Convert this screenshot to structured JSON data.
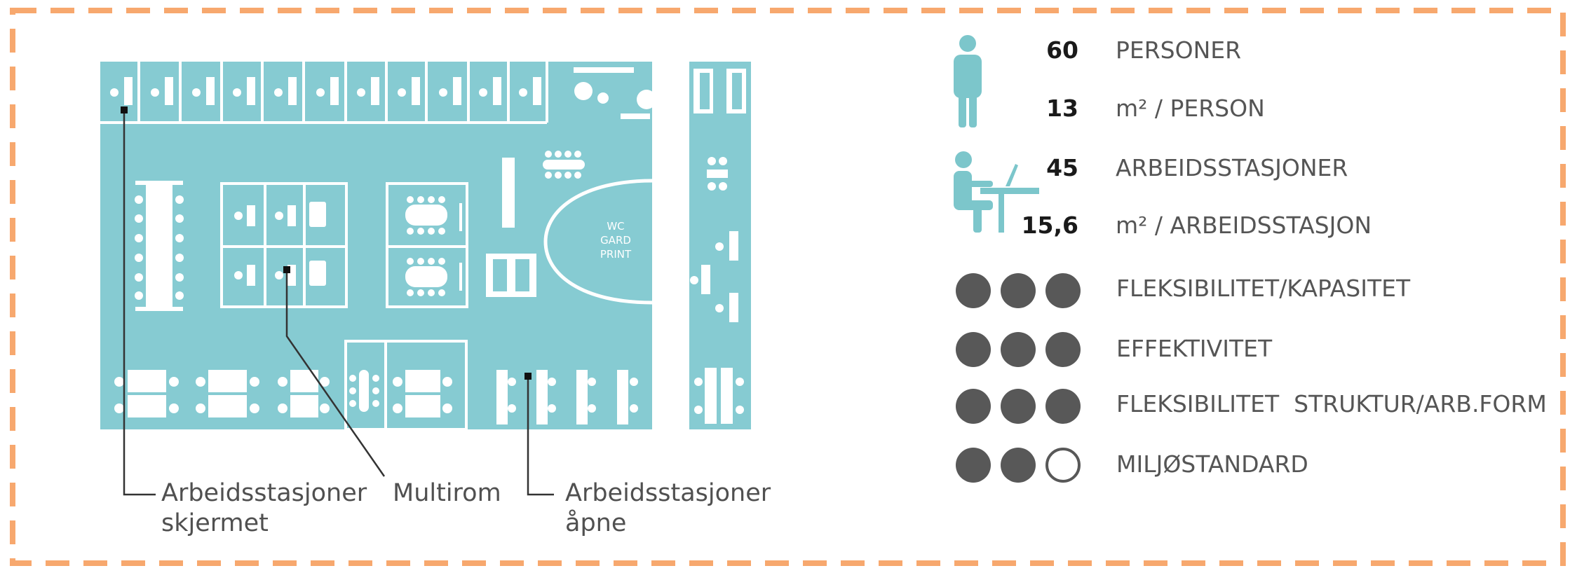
{
  "colors": {
    "border": "#F7A86E",
    "floor": "#86CBD2",
    "furniture": "#FFFFFF",
    "icon": "#7CC6CB",
    "dot": "#585858",
    "leader": "#333333"
  },
  "floorplan": {
    "room_label_lines": [
      "WC",
      "GARD",
      "PRINT"
    ],
    "callouts": {
      "screened": [
        "Arbeidsstasjoner",
        "skjermet"
      ],
      "multiroom": "Multirom",
      "open": [
        "Arbeidsstasjoner",
        "åpne"
      ]
    }
  },
  "stats": [
    {
      "value": "60",
      "label": "PERSONER",
      "icon": "person-standing-icon"
    },
    {
      "value": "13",
      "label": "m² / PERSON",
      "icon": ""
    },
    {
      "value": "45",
      "label": "ARBEIDSSTASJONER",
      "icon": "person-at-desk-icon"
    },
    {
      "value": "15,6",
      "label": "m² / ARBEIDSSTASJON",
      "icon": ""
    }
  ],
  "ratings": [
    {
      "label": "FLEKSIBILITET/KAPASITET",
      "filled": 3,
      "max": 3
    },
    {
      "label": "EFFEKTIVITET",
      "filled": 3,
      "max": 3
    },
    {
      "label": "FLEKSIBILITET  STRUKTUR/ARB.FORM",
      "filled": 3,
      "max": 3
    },
    {
      "label": "MILJØSTANDARD",
      "filled": 2,
      "max": 3
    }
  ]
}
